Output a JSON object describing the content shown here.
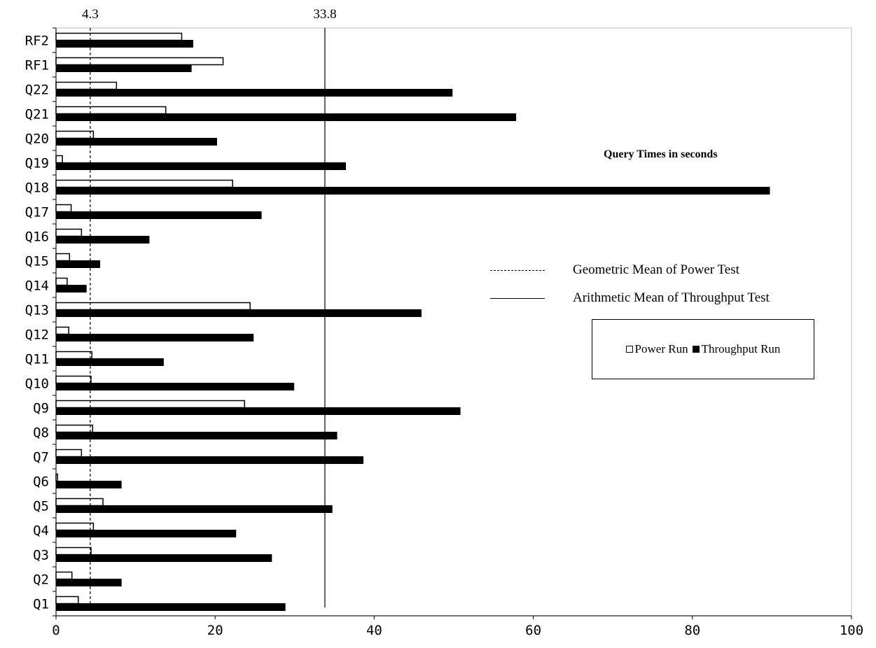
{
  "chart_data": {
    "type": "bar",
    "orientation": "horizontal",
    "categories": [
      "RF2",
      "RF1",
      "Q22",
      "Q21",
      "Q20",
      "Q19",
      "Q18",
      "Q17",
      "Q16",
      "Q15",
      "Q14",
      "Q13",
      "Q12",
      "Q11",
      "Q10",
      "Q9",
      "Q8",
      "Q7",
      "Q6",
      "Q5",
      "Q4",
      "Q3",
      "Q2",
      "Q1"
    ],
    "series": [
      {
        "name": "Power Run",
        "fill": "#ffffff",
        "values": [
          15.8,
          21.0,
          7.6,
          13.8,
          4.7,
          0.8,
          22.2,
          1.9,
          3.2,
          1.7,
          1.4,
          24.4,
          1.6,
          4.5,
          4.4,
          23.7,
          4.6,
          3.2,
          0.2,
          5.9,
          4.7,
          4.4,
          2.0,
          2.8
        ]
      },
      {
        "name": "Throughput Run",
        "fill": "#000000",
        "values": [
          17.2,
          17.0,
          49.8,
          57.8,
          20.2,
          36.4,
          89.7,
          25.8,
          11.7,
          5.5,
          3.8,
          45.9,
          24.8,
          13.5,
          29.9,
          50.8,
          35.3,
          38.6,
          8.2,
          34.7,
          22.6,
          27.1,
          8.2,
          28.8
        ]
      }
    ],
    "xlim": [
      0,
      100
    ],
    "xticks": [
      0,
      20,
      40,
      60,
      80,
      100
    ],
    "reference_lines": [
      {
        "value": 4.3,
        "label": "4.3",
        "style": "dashed",
        "legend": "Geometric Mean of Power Test"
      },
      {
        "value": 33.8,
        "label": "33.8",
        "style": "solid",
        "legend": "Arithmetic Mean of Throughput Test"
      }
    ],
    "annotation": "Query Times in seconds",
    "legend_position": "right"
  }
}
